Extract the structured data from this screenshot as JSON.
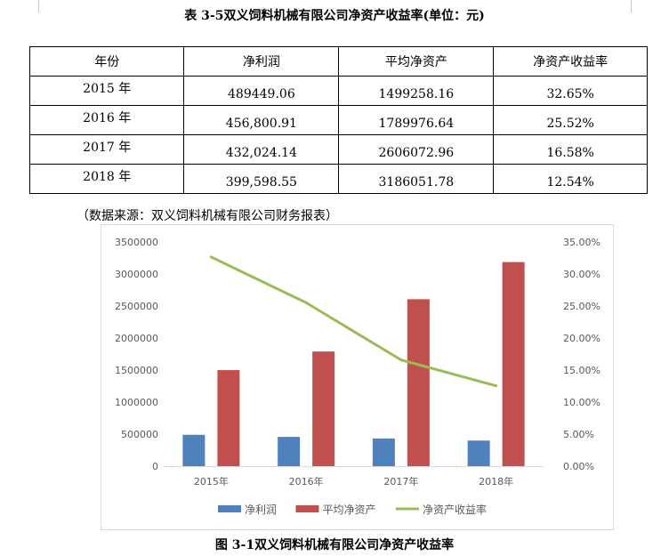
{
  "table": {
    "caption": "表 3-5双义饲料机械有限公司净资产收益率(单位：元)",
    "headers": [
      "年份",
      "净利润",
      "平均净资产",
      "净资产收益率"
    ],
    "rows": [
      [
        "2015 年",
        "489449.06",
        "1499258.16",
        "32.65%"
      ],
      [
        "2016 年",
        "456,800.91",
        "1789976.64",
        "25.52%"
      ],
      [
        "2017 年",
        "432,024.14",
        "2606072.96",
        "16.58%"
      ],
      [
        "2018 年",
        "399,598.55",
        "3186051.78",
        "12.54%"
      ]
    ],
    "source": "（数据来源：双义饲料机械有限公司财务报表）"
  },
  "figure": {
    "caption": "图 3-1双义饲料机械有限公司净资产收益率"
  },
  "chart_data": {
    "type": "bar",
    "title": "",
    "xlabel": "",
    "ylabel": "",
    "categories": [
      "2015年",
      "2016年",
      "2017年",
      "2018年"
    ],
    "ylim": [
      0,
      3500000
    ],
    "y_ticks": [
      "0",
      "500000",
      "1000000",
      "1500000",
      "2000000",
      "2500000",
      "3000000",
      "3500000"
    ],
    "y2lim": [
      0,
      35
    ],
    "y2_ticks": [
      "0.00%",
      "5.00%",
      "10.00%",
      "15.00%",
      "20.00%",
      "25.00%",
      "30.00%",
      "35.00%"
    ],
    "series": [
      {
        "name": "净利润",
        "type": "bar",
        "axis": "left",
        "color": "#4f81bd",
        "values": [
          489449.06,
          456800.91,
          432024.14,
          399598.55
        ]
      },
      {
        "name": "平均净资产",
        "type": "bar",
        "axis": "left",
        "color": "#c0504d",
        "values": [
          1499258.16,
          1789976.64,
          2606072.96,
          3186051.78
        ]
      },
      {
        "name": "净资产收益率",
        "type": "line",
        "axis": "right",
        "color": "#9bbb59",
        "values": [
          32.65,
          25.52,
          16.58,
          12.54
        ]
      }
    ],
    "grid": false,
    "legend": "bottom"
  }
}
